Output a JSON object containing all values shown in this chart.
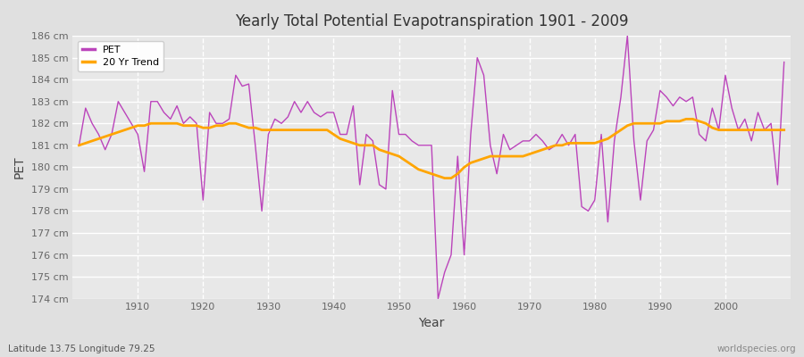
{
  "title": "Yearly Total Potential Evapotranspiration 1901 - 2009",
  "xlabel": "Year",
  "ylabel": "PET",
  "subtitle": "Latitude 13.75 Longitude 79.25",
  "watermark": "worldspecies.org",
  "pet_color": "#bb44bb",
  "trend_color": "#FFA500",
  "bg_color": "#e0e0e0",
  "plot_bg_color": "#e8e8e8",
  "grid_color": "#ffffff",
  "ylim": [
    174,
    186
  ],
  "ytick_step": 1,
  "years": [
    1901,
    1902,
    1903,
    1904,
    1905,
    1906,
    1907,
    1908,
    1909,
    1910,
    1911,
    1912,
    1913,
    1914,
    1915,
    1916,
    1917,
    1918,
    1919,
    1920,
    1921,
    1922,
    1923,
    1924,
    1925,
    1926,
    1927,
    1928,
    1929,
    1930,
    1931,
    1932,
    1933,
    1934,
    1935,
    1936,
    1937,
    1938,
    1939,
    1940,
    1941,
    1942,
    1943,
    1944,
    1945,
    1946,
    1947,
    1948,
    1949,
    1950,
    1951,
    1952,
    1953,
    1954,
    1955,
    1956,
    1957,
    1958,
    1959,
    1960,
    1961,
    1962,
    1963,
    1964,
    1965,
    1966,
    1967,
    1968,
    1969,
    1970,
    1971,
    1972,
    1973,
    1974,
    1975,
    1976,
    1977,
    1978,
    1979,
    1980,
    1981,
    1982,
    1983,
    1984,
    1985,
    1986,
    1987,
    1988,
    1989,
    1990,
    1991,
    1992,
    1993,
    1994,
    1995,
    1996,
    1997,
    1998,
    1999,
    2000,
    2001,
    2002,
    2003,
    2004,
    2005,
    2006,
    2007,
    2008,
    2009
  ],
  "pet_values": [
    181.0,
    182.7,
    182.0,
    181.5,
    180.8,
    181.5,
    183.0,
    182.5,
    182.0,
    181.5,
    179.8,
    183.0,
    183.0,
    182.5,
    182.2,
    182.8,
    182.0,
    182.3,
    182.0,
    178.5,
    182.5,
    182.0,
    182.0,
    182.2,
    184.2,
    183.7,
    183.8,
    181.0,
    178.0,
    181.5,
    182.2,
    182.0,
    182.3,
    183.0,
    182.5,
    183.0,
    182.5,
    182.3,
    182.5,
    182.5,
    181.5,
    181.5,
    182.8,
    179.2,
    181.5,
    181.2,
    179.2,
    179.0,
    183.5,
    181.5,
    181.5,
    181.2,
    181.0,
    181.0,
    181.0,
    174.0,
    175.2,
    176.0,
    180.5,
    176.0,
    181.5,
    185.0,
    184.2,
    181.0,
    179.7,
    181.5,
    180.8,
    181.0,
    181.2,
    181.2,
    181.5,
    181.2,
    180.8,
    181.0,
    181.5,
    181.0,
    181.5,
    178.2,
    178.0,
    178.5,
    181.5,
    177.5,
    181.2,
    183.2,
    186.0,
    181.2,
    178.5,
    181.2,
    181.7,
    183.5,
    183.2,
    182.8,
    183.2,
    183.0,
    183.2,
    181.5,
    181.2,
    182.7,
    181.7,
    184.2,
    182.7,
    181.7,
    182.2,
    181.2,
    182.5,
    181.7,
    182.0,
    179.2,
    184.8
  ],
  "trend_values": [
    181.0,
    181.1,
    181.2,
    181.3,
    181.4,
    181.5,
    181.6,
    181.7,
    181.8,
    181.9,
    181.9,
    182.0,
    182.0,
    182.0,
    182.0,
    182.0,
    181.9,
    181.9,
    181.9,
    181.8,
    181.8,
    181.9,
    181.9,
    182.0,
    182.0,
    181.9,
    181.8,
    181.8,
    181.7,
    181.7,
    181.7,
    181.7,
    181.7,
    181.7,
    181.7,
    181.7,
    181.7,
    181.7,
    181.7,
    181.5,
    181.3,
    181.2,
    181.1,
    181.0,
    181.0,
    181.0,
    180.8,
    180.7,
    180.6,
    180.5,
    180.3,
    180.1,
    179.9,
    179.8,
    179.7,
    179.6,
    179.5,
    179.5,
    179.7,
    180.0,
    180.2,
    180.3,
    180.4,
    180.5,
    180.5,
    180.5,
    180.5,
    180.5,
    180.5,
    180.6,
    180.7,
    180.8,
    180.9,
    181.0,
    181.0,
    181.1,
    181.1,
    181.1,
    181.1,
    181.1,
    181.2,
    181.3,
    181.5,
    181.7,
    181.9,
    182.0,
    182.0,
    182.0,
    182.0,
    182.0,
    182.1,
    182.1,
    182.1,
    182.2,
    182.2,
    182.1,
    182.0,
    181.8,
    181.7,
    181.7,
    181.7,
    181.7,
    181.7,
    181.7,
    181.7,
    181.7,
    181.7,
    181.7,
    181.7
  ]
}
